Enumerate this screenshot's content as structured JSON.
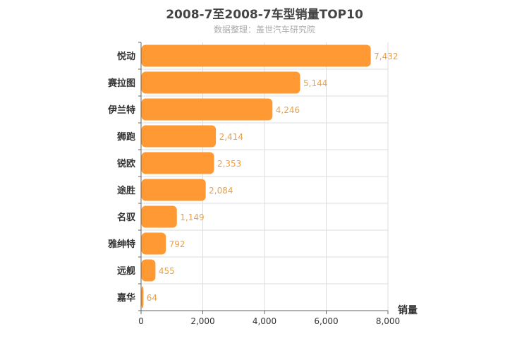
{
  "chart_data": {
    "type": "bar",
    "orientation": "horizontal",
    "title": "2008-7至2008-7车型销量TOP10",
    "subtitle": "数据整理：盖世汽车研究院",
    "categories": [
      "悦动",
      "赛拉图",
      "伊兰特",
      "狮跑",
      "锐欧",
      "途胜",
      "名驭",
      "雅绅特",
      "远舰",
      "嘉华"
    ],
    "values": [
      7432,
      5144,
      4246,
      2414,
      2353,
      2084,
      1149,
      792,
      455,
      64
    ],
    "value_labels": [
      "7,432",
      "5,144",
      "4,246",
      "2,414",
      "2,353",
      "2,084",
      "1,149",
      "792",
      "455",
      "64"
    ],
    "xlabel": "销量",
    "xlim": [
      0,
      8000
    ],
    "xticks": [
      0,
      2000,
      4000,
      6000,
      8000
    ],
    "xtick_labels": [
      "0",
      "2,000",
      "4,000",
      "6,000",
      "8,000"
    ],
    "grid": true,
    "bar_color": "#ff9933",
    "label_color": "#f0a040"
  }
}
